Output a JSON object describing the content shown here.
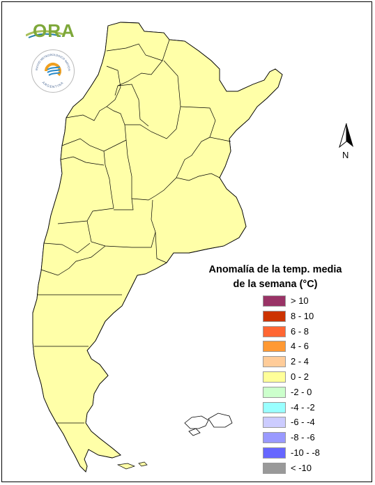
{
  "legend": {
    "title_line1": "Anomalía de la temp. media",
    "title_line2": "de la semana (°C)",
    "items": [
      {
        "label": "> 10",
        "color": "#993366"
      },
      {
        "label": "8 - 10",
        "color": "#cc3300"
      },
      {
        "label": "6 - 8",
        "color": "#ff6633"
      },
      {
        "label": "4 - 6",
        "color": "#ff9933"
      },
      {
        "label": "2 - 4",
        "color": "#ffcc99"
      },
      {
        "label": "0 - 2",
        "color": "#ffff99"
      },
      {
        "label": "-2 - 0",
        "color": "#ccffcc"
      },
      {
        "label": "-4 - -2",
        "color": "#99ffff"
      },
      {
        "label": "-6 - -4",
        "color": "#ccccff"
      },
      {
        "label": "-8 - -6",
        "color": "#9999ff"
      },
      {
        "label": "-10 - -8",
        "color": "#6666ff"
      },
      {
        "label": "< -10",
        "color": "#999999"
      }
    ]
  },
  "logos": {
    "ora": "ORA",
    "smn_ring_text": "SERVICIO METEOROLOGICO NACIONAL",
    "smn_country": "ARGENTINA"
  },
  "north_arrow": {
    "letter": "N",
    "icon": "north-arrow-icon"
  },
  "map": {
    "base_color": "#ffffa8",
    "warm_color": "#fbc897",
    "cool_color": "#cbf3c6",
    "border_color": "#000000"
  }
}
